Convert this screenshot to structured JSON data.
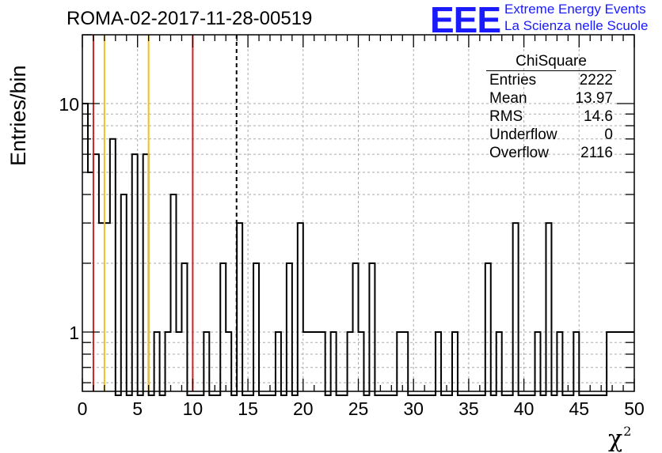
{
  "title": "ROMA-02-2017-11-28-00519",
  "logo": {
    "mark": "EEE",
    "line1": "Extreme Energy Events",
    "line2": "La Scienza nelle Scuole",
    "color": "#1a1aff"
  },
  "stats": {
    "title": "ChiSquare",
    "rows": [
      {
        "label": "Entries",
        "value": "2222"
      },
      {
        "label": "Mean",
        "value": "13.97"
      },
      {
        "label": "RMS",
        "value": "14.6"
      },
      {
        "label": "Underflow",
        "value": "0"
      },
      {
        "label": "Overflow",
        "value": "2116"
      }
    ]
  },
  "chart_data": {
    "type": "bar",
    "histogram": true,
    "ylabel": "Entries/bin",
    "xlabel": "χ",
    "xlabel_sup": "2",
    "xlim": [
      0,
      50
    ],
    "ylim": [
      0.55,
      20
    ],
    "yscale": "log",
    "grid": true,
    "bin_width": 0.5,
    "x_ticks": [
      0,
      5,
      10,
      15,
      20,
      25,
      30,
      35,
      40,
      45,
      50
    ],
    "y_ticks": [
      1,
      10
    ],
    "bins": [
      [
        0.0,
        10
      ],
      [
        0.5,
        5
      ],
      [
        1.0,
        6
      ],
      [
        1.5,
        3
      ],
      [
        2.0,
        3
      ],
      [
        2.5,
        7
      ],
      [
        3.5,
        4
      ],
      [
        4.5,
        6
      ],
      [
        5.5,
        6
      ],
      [
        6.5,
        1
      ],
      [
        7.5,
        1
      ],
      [
        8.0,
        4
      ],
      [
        8.5,
        1
      ],
      [
        9.0,
        2
      ],
      [
        11.0,
        1
      ],
      [
        12.5,
        2
      ],
      [
        13.0,
        1
      ],
      [
        14.0,
        3
      ],
      [
        15.5,
        2
      ],
      [
        17.5,
        1
      ],
      [
        18.5,
        2
      ],
      [
        19.5,
        3
      ],
      [
        20.0,
        1
      ],
      [
        20.5,
        1
      ],
      [
        21.0,
        1
      ],
      [
        21.5,
        1
      ],
      [
        22.5,
        1
      ],
      [
        24.0,
        1
      ],
      [
        24.5,
        2
      ],
      [
        25.0,
        1
      ],
      [
        26.0,
        2
      ],
      [
        28.5,
        1
      ],
      [
        29.0,
        1
      ],
      [
        32.0,
        1
      ],
      [
        33.5,
        1
      ],
      [
        36.5,
        2
      ],
      [
        37.5,
        1
      ],
      [
        39.0,
        3
      ],
      [
        41.0,
        1
      ],
      [
        42.0,
        3
      ],
      [
        43.0,
        1
      ],
      [
        44.5,
        1
      ],
      [
        47.5,
        1
      ],
      [
        48.0,
        1
      ],
      [
        48.5,
        1
      ],
      [
        49.0,
        1
      ],
      [
        49.5,
        1
      ]
    ],
    "vertical_lines": [
      {
        "x": 1,
        "color": "#d42020",
        "style": "solid"
      },
      {
        "x": 2,
        "color": "#f0c020",
        "style": "solid"
      },
      {
        "x": 6,
        "color": "#f0c020",
        "style": "solid"
      },
      {
        "x": 10,
        "color": "#d42020",
        "style": "solid"
      },
      {
        "x": 13.97,
        "color": "#000000",
        "style": "dashed"
      }
    ]
  }
}
